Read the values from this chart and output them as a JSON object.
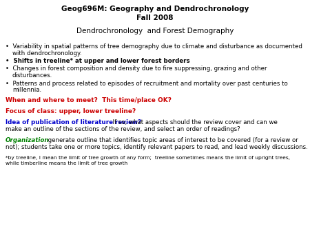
{
  "title_line1": "Geog696M: Geography and Dendrochronology",
  "title_line2": "Fall 2008",
  "subtitle": "Dendrochronology  and Forest Demography",
  "bullet1": "Variability in spatial patterns of tree demography due to climate and disturbance as documented\nwith dendrochronology.",
  "bullet2": "Shifts in treeline* at upper and lower forest borders",
  "bullet3": "Changes in forest composition and density due to fire suppressing, grazing and other\ndisturbances.",
  "bullet4": "Patterns and process related to episodes of recruitment and mortality over past centuries to\nmillennia.",
  "red_line1": "When and where to meet?  This time/place OK?",
  "red_line2": "Focus of class: upper, lower treeline?",
  "blue_bold": "Idea of publication of literature review?",
  "blue_rest_line1": "  If so, what aspects should the review cover and can we",
  "blue_rest_line2": "make an outline of the sections of the review, and select an order of readings?",
  "green_bold": "Organization",
  "green_rest": ": generate outline that identifies topic areas of interest to be covered (for a review or\nnot); students take one or more topics, identify relevant papers to read, and lead weekly discussions.",
  "footnote": "*by treeline, I mean the limit of tree growth of any form;  treeline sometimes means the limit of upright trees,\nwhile timberline means the limit of tree growth",
  "bg_color": "#ffffff",
  "black": "#000000",
  "red": "#cc0000",
  "blue": "#0000cc",
  "green": "#008000"
}
